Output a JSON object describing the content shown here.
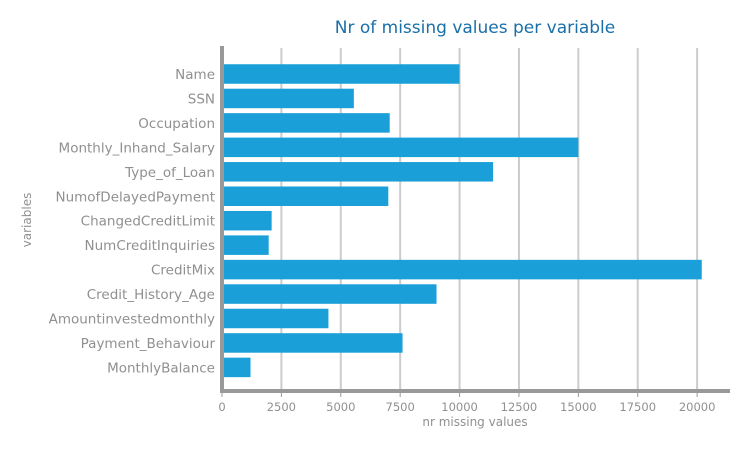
{
  "chart_data": {
    "type": "bar",
    "orientation": "horizontal",
    "title": "Nr of missing values per variable",
    "xlabel": "nr missing values",
    "ylabel": "variables",
    "categories": [
      "Name",
      "SSN",
      "Occupation",
      "Monthly_Inhand_Salary",
      "Type_of_Loan",
      "NumofDelayedPayment",
      "ChangedCreditLimit",
      "NumCreditInquiries",
      "CreditMix",
      "Credit_History_Age",
      "Amountinvestedmonthly",
      "Payment_Behaviour",
      "MonthlyBalance"
    ],
    "values": [
      10000,
      5550,
      7060,
      15000,
      11410,
      7000,
      2090,
      1965,
      20195,
      9030,
      4480,
      7600,
      1200
    ],
    "xlim": [
      0,
      21300
    ],
    "xticks": [
      0,
      2500,
      5000,
      7500,
      10000,
      12500,
      15000,
      17500,
      20000
    ],
    "xtick_labels": [
      "0",
      "2500",
      "5000",
      "7500",
      "10000",
      "12500",
      "15000",
      "17500",
      "20000"
    ],
    "grid": "vertical",
    "colors": {
      "bar": "#1a9fd9",
      "title": "#1a6fa8",
      "axis": "#999999",
      "grid": "#cccccc",
      "text": "#909090"
    }
  }
}
